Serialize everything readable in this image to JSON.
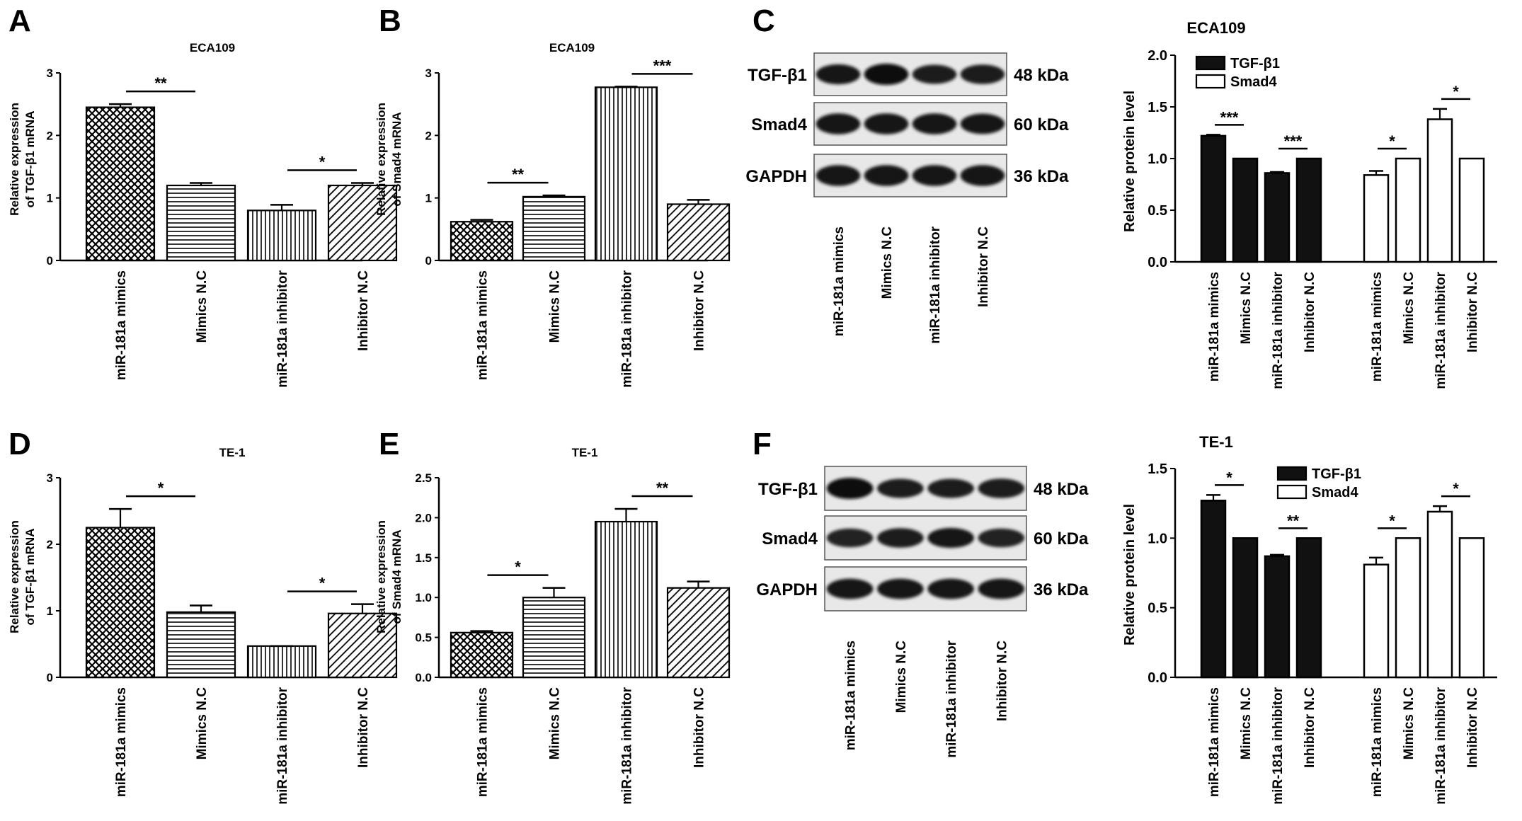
{
  "figure_label": "Figure panels A–F",
  "chart_data": [
    {
      "id": "A",
      "type": "bar",
      "panel_label": "A",
      "title": "ECA109",
      "ylabel": [
        "Relative  expression",
        "of TGF-β1 mRNA"
      ],
      "ylim": [
        0,
        3
      ],
      "yticks": [
        "0",
        "1",
        "2",
        "3"
      ],
      "categories": [
        "miR-181a mimics",
        "Mimics N.C",
        "miR-181a inhibitor",
        "Inhibitor N.C"
      ],
      "values": [
        2.45,
        1.2,
        0.8,
        1.2
      ],
      "errors": [
        0.05,
        0.04,
        0.09,
        0.04
      ],
      "patterns": [
        "check",
        "hlines",
        "vlines",
        "diag"
      ],
      "significance": [
        {
          "from": 0,
          "to": 1,
          "label": "**"
        },
        {
          "from": 2,
          "to": 3,
          "label": "*"
        }
      ]
    },
    {
      "id": "B",
      "type": "bar",
      "panel_label": "B",
      "title": "ECA109",
      "ylabel": [
        "Relative  expression",
        "of Smad4 mRNA"
      ],
      "ylim": [
        0,
        3
      ],
      "yticks": [
        "0",
        "1",
        "2",
        "3"
      ],
      "categories": [
        "miR-181a mimics",
        "Mimics N.C",
        "miR-181a inhibitor",
        "Inhibitor N.C"
      ],
      "values": [
        0.62,
        1.02,
        2.77,
        0.9
      ],
      "errors": [
        0.03,
        0.02,
        0.01,
        0.07
      ],
      "patterns": [
        "check",
        "hlines",
        "vlines",
        "diag"
      ],
      "significance": [
        {
          "from": 0,
          "to": 1,
          "label": "**"
        },
        {
          "from": 2,
          "to": 3,
          "label": "***"
        }
      ]
    },
    {
      "id": "C",
      "type": "bar",
      "panel_label": "C",
      "title": "ECA109",
      "ylabel": [
        "Relative protein level"
      ],
      "ylim": [
        0,
        2
      ],
      "yticks": [
        "0.0",
        "0.5",
        "1.0",
        "1.5",
        "2.0"
      ],
      "categories": [
        "miR-181a mimics",
        "Mimics N.C",
        "miR-181a inhibitor",
        "Inhibitor N.C"
      ],
      "series": [
        {
          "name": "TGF-β1",
          "values": [
            1.22,
            1.0,
            0.86,
            1.0
          ],
          "errors": [
            0.01,
            0.0,
            0.01,
            0.0
          ],
          "fill": "#111111"
        },
        {
          "name": "Smad4",
          "values": [
            0.84,
            1.0,
            1.38,
            1.0
          ],
          "errors": [
            0.04,
            0.0,
            0.1,
            0.0
          ],
          "fill": "#ffffff"
        }
      ],
      "significance": [
        {
          "series": 0,
          "from": 0,
          "to": 1,
          "label": "***"
        },
        {
          "series": 0,
          "from": 2,
          "to": 3,
          "label": "***"
        },
        {
          "series": 1,
          "from": 0,
          "to": 1,
          "label": "*"
        },
        {
          "series": 1,
          "from": 2,
          "to": 3,
          "label": "*"
        }
      ],
      "legend": "top-left"
    },
    {
      "id": "D",
      "type": "bar",
      "panel_label": "D",
      "title": "TE-1",
      "ylabel": [
        "Relative  expression",
        "of TGF-β1 mRNA"
      ],
      "ylim": [
        0,
        3
      ],
      "yticks": [
        "0",
        "1",
        "2",
        "3"
      ],
      "categories": [
        "miR-181a mimics",
        "Mimics N.C",
        "miR-181a inhibitor",
        "Inhibitor N.C"
      ],
      "values": [
        2.25,
        0.98,
        0.47,
        0.96
      ],
      "errors": [
        0.28,
        0.1,
        0.0,
        0.14
      ],
      "patterns": [
        "check",
        "hlines",
        "vlines",
        "diag"
      ],
      "significance": [
        {
          "from": 0,
          "to": 1,
          "label": "*"
        },
        {
          "from": 2,
          "to": 3,
          "label": "*"
        }
      ]
    },
    {
      "id": "E",
      "type": "bar",
      "panel_label": "E",
      "title": "TE-1",
      "ylabel": [
        "Relative  expression",
        "of Smad4 mRNA"
      ],
      "ylim": [
        0,
        2.5
      ],
      "yticks": [
        "0.0",
        "0.5",
        "1.0",
        "1.5",
        "2.0",
        "2.5"
      ],
      "categories": [
        "miR-181a mimics",
        "Mimics N.C",
        "miR-181a inhibitor",
        "Inhibitor N.C"
      ],
      "values": [
        0.56,
        1.0,
        1.95,
        1.12
      ],
      "errors": [
        0.02,
        0.12,
        0.16,
        0.08
      ],
      "patterns": [
        "check",
        "hlines",
        "vlines",
        "diag"
      ],
      "significance": [
        {
          "from": 0,
          "to": 1,
          "label": "*"
        },
        {
          "from": 2,
          "to": 3,
          "label": "**"
        }
      ]
    },
    {
      "id": "F",
      "type": "bar",
      "panel_label": "F",
      "title": "TE-1",
      "ylabel": [
        "Relative protein level"
      ],
      "ylim": [
        0,
        1.5
      ],
      "yticks": [
        "0.0",
        "0.5",
        "1.0",
        "1.5"
      ],
      "categories": [
        "miR-181a mimics",
        "Mimics N.C",
        "miR-181a inhibitor",
        "Inhibitor N.C"
      ],
      "series": [
        {
          "name": "TGF-β1",
          "values": [
            1.27,
            1.0,
            0.87,
            1.0
          ],
          "errors": [
            0.04,
            0.0,
            0.01,
            0.0
          ],
          "fill": "#111111"
        },
        {
          "name": "Smad4",
          "values": [
            0.81,
            1.0,
            1.19,
            1.0
          ],
          "errors": [
            0.05,
            0.0,
            0.04,
            0.0
          ],
          "fill": "#ffffff"
        }
      ],
      "significance": [
        {
          "series": 0,
          "from": 0,
          "to": 1,
          "label": "*"
        },
        {
          "series": 0,
          "from": 2,
          "to": 3,
          "label": "**"
        },
        {
          "series": 1,
          "from": 0,
          "to": 1,
          "label": "*"
        },
        {
          "series": 1,
          "from": 2,
          "to": 3,
          "label": "*"
        }
      ],
      "legend": "top-right"
    }
  ],
  "blots": [
    {
      "id": "C",
      "title": "ECA109",
      "rows": [
        {
          "protein": "TGF-β1",
          "size": "48 kDa",
          "intensity": [
            0.85,
            1.0,
            0.75,
            0.8
          ]
        },
        {
          "protein": "Smad4",
          "size": "60 kDa",
          "intensity": [
            0.95,
            0.95,
            0.95,
            0.9
          ]
        },
        {
          "protein": "GAPDH",
          "size": "36 kDa",
          "intensity": [
            0.95,
            0.95,
            0.95,
            0.95
          ]
        }
      ],
      "lanes": [
        "miR-181a mimics",
        "Mimics N.C",
        "miR-181a inhibitor",
        "Inhibitor N.C"
      ]
    },
    {
      "id": "F",
      "title": "TE-1",
      "rows": [
        {
          "protein": "TGF-β1",
          "size": "48 kDa",
          "intensity": [
            1.0,
            0.75,
            0.75,
            0.8
          ]
        },
        {
          "protein": "Smad4",
          "size": "60 kDa",
          "intensity": [
            0.7,
            0.8,
            0.85,
            0.7
          ]
        },
        {
          "protein": "GAPDH",
          "size": "36 kDa",
          "intensity": [
            0.9,
            0.9,
            0.9,
            0.9
          ]
        }
      ],
      "lanes": [
        "miR-181a mimics",
        "Mimics N.C",
        "miR-181a inhibitor",
        "Inhibitor N.C"
      ]
    }
  ]
}
